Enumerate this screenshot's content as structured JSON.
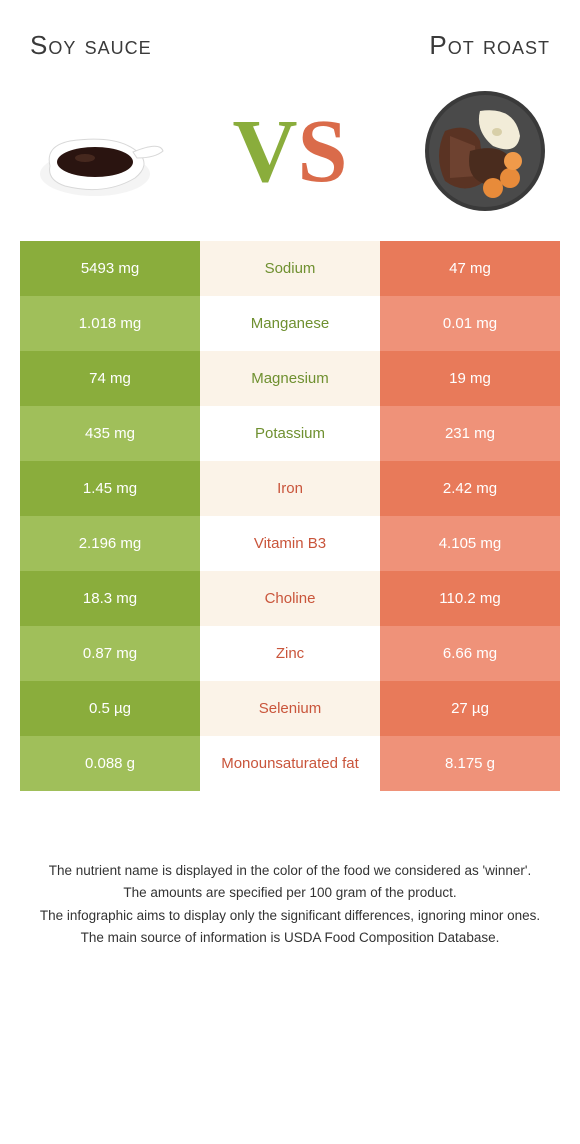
{
  "titles": {
    "left": "Soy sauce",
    "right": "Pot roast"
  },
  "vs": {
    "v": "V",
    "s": "S"
  },
  "colors": {
    "left_a": "#8aad3c",
    "left_b": "#a0bf5a",
    "mid_a": "#fbf3e8",
    "mid_b": "#ffffff",
    "right_a": "#e87a5a",
    "right_b": "#ef9279",
    "text_left": "#6f9030",
    "text_right": "#c9553b"
  },
  "rows": [
    {
      "left": "5493 mg",
      "label": "Sodium",
      "right": "47 mg",
      "winner": "left"
    },
    {
      "left": "1.018 mg",
      "label": "Manganese",
      "right": "0.01 mg",
      "winner": "left"
    },
    {
      "left": "74 mg",
      "label": "Magnesium",
      "right": "19 mg",
      "winner": "left"
    },
    {
      "left": "435 mg",
      "label": "Potassium",
      "right": "231 mg",
      "winner": "left"
    },
    {
      "left": "1.45 mg",
      "label": "Iron",
      "right": "2.42 mg",
      "winner": "right"
    },
    {
      "left": "2.196 mg",
      "label": "Vitamin B3",
      "right": "4.105 mg",
      "winner": "right"
    },
    {
      "left": "18.3 mg",
      "label": "Choline",
      "right": "110.2 mg",
      "winner": "right"
    },
    {
      "left": "0.87 mg",
      "label": "Zinc",
      "right": "6.66 mg",
      "winner": "right"
    },
    {
      "left": "0.5 µg",
      "label": "Selenium",
      "right": "27 µg",
      "winner": "right"
    },
    {
      "left": "0.088 g",
      "label": "Monounsaturated fat",
      "right": "8.175 g",
      "winner": "right"
    }
  ],
  "footer": [
    "The nutrient name is displayed in the color of the food we considered as 'winner'.",
    "The amounts are specified per 100 gram of the product.",
    "The infographic aims to display only the significant differences, ignoring minor ones.",
    "The main source of information is USDA Food Composition Database."
  ]
}
